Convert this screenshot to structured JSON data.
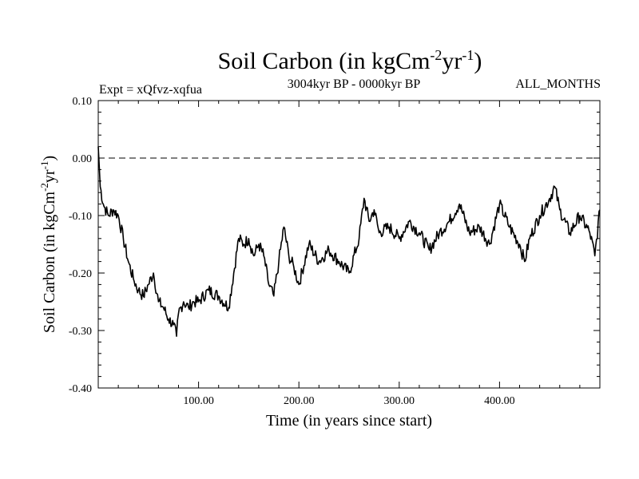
{
  "chart_data": {
    "type": "line",
    "title": "Soil Carbon (in kgCm",
    "title_units": {
      "exp1": "-2",
      "mid": "yr",
      "exp2": "-1",
      "close": ")"
    },
    "left_label": "Expt = xQfvz-xqfua",
    "subtitle": "3004kyr BP - 0000kyr BP",
    "right_label": "ALL_MONTHS",
    "xlabel": "Time (in years since start)",
    "ylabel": "Soil Carbon (in kgCm",
    "ylabel_units": {
      "exp1": "-2",
      "mid": "yr",
      "exp2": "-1",
      "close": ")"
    },
    "xlim": [
      0,
      500
    ],
    "ylim": [
      -0.4,
      0.1
    ],
    "xticks": [
      100,
      200,
      300,
      400
    ],
    "xtick_labels": [
      "100.00",
      "200.00",
      "300.00",
      "400.00"
    ],
    "yticks": [
      0.1,
      0.0,
      -0.1,
      -0.2,
      -0.3,
      -0.4
    ],
    "ytick_labels": [
      "0.10",
      "0.00",
      "-0.10",
      "-0.20",
      "-0.30",
      "-0.40"
    ],
    "reference_line": {
      "y": 0.0,
      "style": "dashed"
    },
    "series": [
      {
        "name": "Soil Carbon",
        "color": "#000000",
        "x": [
          0,
          2,
          5,
          10,
          15,
          20,
          25,
          30,
          35,
          40,
          45,
          50,
          55,
          60,
          65,
          70,
          75,
          78,
          80,
          85,
          90,
          95,
          100,
          110,
          120,
          130,
          140,
          145,
          150,
          155,
          160,
          165,
          170,
          175,
          180,
          185,
          190,
          195,
          200,
          210,
          220,
          230,
          240,
          250,
          260,
          265,
          270,
          275,
          280,
          290,
          300,
          310,
          320,
          330,
          340,
          350,
          360,
          370,
          380,
          390,
          400,
          410,
          420,
          425,
          430,
          440,
          450,
          455,
          460,
          470,
          480,
          490,
          495,
          500
        ],
        "values": [
          0.02,
          -0.05,
          -0.08,
          -0.1,
          -0.09,
          -0.1,
          -0.14,
          -0.18,
          -0.21,
          -0.23,
          -0.24,
          -0.22,
          -0.2,
          -0.25,
          -0.26,
          -0.28,
          -0.29,
          -0.31,
          -0.27,
          -0.25,
          -0.26,
          -0.25,
          -0.25,
          -0.23,
          -0.24,
          -0.26,
          -0.14,
          -0.15,
          -0.14,
          -0.17,
          -0.15,
          -0.17,
          -0.22,
          -0.24,
          -0.18,
          -0.12,
          -0.17,
          -0.19,
          -0.22,
          -0.15,
          -0.18,
          -0.16,
          -0.18,
          -0.2,
          -0.14,
          -0.07,
          -0.11,
          -0.09,
          -0.13,
          -0.12,
          -0.14,
          -0.11,
          -0.13,
          -0.16,
          -0.13,
          -0.11,
          -0.08,
          -0.13,
          -0.12,
          -0.15,
          -0.08,
          -0.12,
          -0.15,
          -0.18,
          -0.14,
          -0.1,
          -0.07,
          -0.05,
          -0.09,
          -0.13,
          -0.1,
          -0.13,
          -0.17,
          -0.09
        ]
      }
    ]
  }
}
